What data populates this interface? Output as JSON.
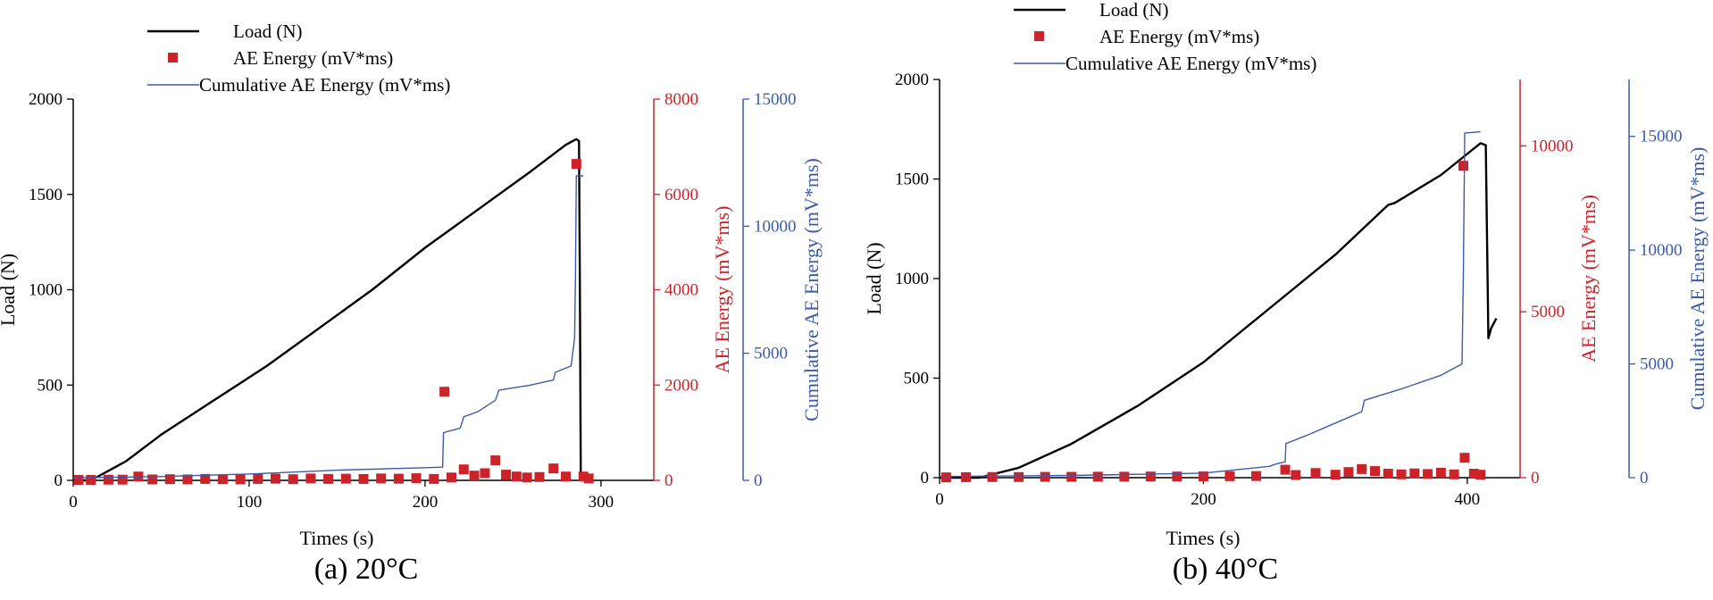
{
  "colors": {
    "load": "#000000",
    "energy": "#cc2229",
    "cumulative": "#3b5ba9"
  },
  "legend": {
    "load": "Load (N)",
    "energy": "AE Energy (mV*ms)",
    "cumulative": "Cumulative AE Energy (mV*ms)"
  },
  "chart_data": [
    {
      "type": "line",
      "caption": "(a) 20°C",
      "xlabel": "Times (s)",
      "ylabel": "Load (N)",
      "y2label": "AE Energy (mV*ms)",
      "y3label": "Cumulative AE Energy (mV*ms)",
      "xlim": [
        0,
        330
      ],
      "ylim": [
        0,
        2000
      ],
      "y2lim": [
        0,
        8000
      ],
      "y3lim": [
        0,
        15000
      ],
      "xticks": [
        0,
        100,
        200,
        300
      ],
      "yticks": [
        0,
        500,
        1000,
        1500,
        2000
      ],
      "y2ticks": [
        0,
        2000,
        4000,
        6000,
        8000
      ],
      "y3ticks": [
        0,
        5000,
        10000,
        15000
      ],
      "series": [
        {
          "name": "Load (N)",
          "axis": "y",
          "x": [
            0,
            10,
            30,
            50,
            80,
            110,
            140,
            170,
            200,
            230,
            260,
            280,
            286,
            287.5,
            288,
            288.5
          ],
          "y": [
            0,
            0,
            100,
            240,
            420,
            600,
            800,
            1000,
            1220,
            1420,
            1620,
            1760,
            1790,
            1780,
            1000,
            0
          ]
        },
        {
          "name": "AE Energy (mV*ms)",
          "axis": "y2",
          "x": [
            3,
            10,
            20,
            28,
            37,
            45,
            55,
            65,
            75,
            85,
            95,
            105,
            115,
            125,
            135,
            145,
            155,
            165,
            175,
            185,
            195,
            205,
            211,
            215,
            222,
            228,
            234,
            240,
            246,
            252,
            258,
            265,
            273,
            280,
            286,
            290,
            293
          ],
          "y": [
            10,
            10,
            15,
            15,
            80,
            20,
            25,
            20,
            30,
            25,
            20,
            30,
            35,
            25,
            40,
            30,
            35,
            30,
            40,
            35,
            45,
            30,
            1860,
            60,
            230,
            100,
            150,
            420,
            120,
            80,
            60,
            70,
            250,
            80,
            6640,
            80,
            40
          ]
        },
        {
          "name": "Cumulative AE Energy (mV*ms)",
          "axis": "y3",
          "x": [
            0,
            50,
            100,
            150,
            200,
            210,
            210.5,
            220,
            222,
            230,
            240,
            242,
            260,
            273,
            274,
            283,
            285,
            285.5,
            286,
            290
          ],
          "y": [
            100,
            150,
            250,
            400,
            500,
            520,
            1880,
            2050,
            2500,
            2700,
            3150,
            3550,
            3750,
            3950,
            4250,
            4500,
            5600,
            8000,
            11980,
            11980
          ]
        }
      ]
    },
    {
      "type": "line",
      "caption": "(b) 40°C",
      "xlabel": "Times (s)",
      "ylabel": "Load (N)",
      "y2label": "AE Energy (mV*ms)",
      "y3label": "Cumulative AE Energy (mV*ms)",
      "xlim": [
        0,
        440
      ],
      "ylim": [
        0,
        2000
      ],
      "y2lim": [
        0,
        12000
      ],
      "y3lim": [
        0,
        17500
      ],
      "xticks": [
        0,
        200,
        400
      ],
      "yticks": [
        0,
        500,
        1000,
        1500,
        2000
      ],
      "y2ticks": [
        0,
        5000,
        10000
      ],
      "y3ticks": [
        0,
        5000,
        10000,
        15000
      ],
      "series": [
        {
          "name": "Load (N)",
          "axis": "y",
          "x": [
            0,
            30,
            60,
            100,
            150,
            200,
            250,
            300,
            340,
            345,
            380,
            410,
            414,
            416,
            418,
            422
          ],
          "y": [
            0,
            0,
            50,
            170,
            360,
            580,
            850,
            1120,
            1370,
            1380,
            1520,
            1680,
            1670,
            700,
            750,
            800
          ]
        },
        {
          "name": "AE Energy (mV*ms)",
          "axis": "y2",
          "x": [
            5,
            20,
            40,
            60,
            80,
            100,
            120,
            140,
            160,
            180,
            200,
            220,
            240,
            262,
            270,
            285,
            300,
            310,
            320,
            330,
            340,
            350,
            360,
            370,
            380,
            390,
            397,
            398,
            405,
            410
          ],
          "y": [
            10,
            15,
            20,
            20,
            25,
            25,
            30,
            30,
            35,
            35,
            40,
            45,
            50,
            240,
            80,
            140,
            90,
            170,
            260,
            200,
            120,
            100,
            130,
            110,
            150,
            100,
            9400,
            600,
            120,
            90
          ]
        },
        {
          "name": "Cumulative AE Energy (mV*ms)",
          "axis": "y3",
          "x": [
            0,
            100,
            200,
            250,
            255,
            262,
            262.5,
            280,
            300,
            320,
            322,
            350,
            380,
            396,
            397,
            398,
            410
          ],
          "y": [
            50,
            100,
            200,
            500,
            600,
            700,
            1500,
            1900,
            2400,
            2900,
            3400,
            3900,
            4500,
            5000,
            9000,
            15150,
            15200
          ]
        }
      ]
    }
  ]
}
